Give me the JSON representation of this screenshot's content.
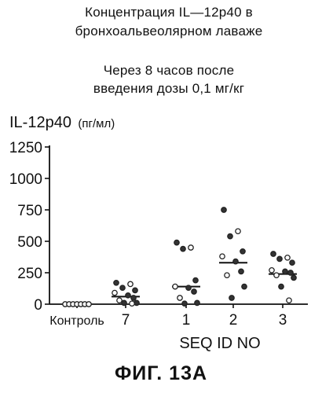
{
  "chart_data": {
    "type": "scatter",
    "title_lines": [
      "Концентрация IL—12p40 в",
      "бронхоальвеолярном лаваже"
    ],
    "subtitle_lines": [
      "Через 8 часов после",
      "введения дозы 0,1 мг/кг"
    ],
    "ylabel": "IL-12p40",
    "ylabel_unit": "(пг/мл)",
    "xlabel": "SEQ ID NO",
    "ylim": [
      0,
      1250
    ],
    "yticks": [
      0,
      250,
      500,
      750,
      1000,
      1250
    ],
    "ytick_labels": [
      "0",
      "250",
      "500",
      "750",
      "1000",
      "1250"
    ],
    "grid": false,
    "categories": [
      "Контроль",
      "7",
      "1",
      "2",
      "3"
    ],
    "groups": [
      {
        "category": "Контроль",
        "median": 0,
        "points": [
          0,
          0,
          0,
          0,
          0,
          0,
          0
        ]
      },
      {
        "category": "7",
        "median": 60,
        "points": [
          170,
          160,
          130,
          110,
          90,
          70,
          50,
          30,
          10,
          10,
          5
        ]
      },
      {
        "category": "1",
        "median": 140,
        "points": [
          490,
          450,
          440,
          190,
          140,
          130,
          100,
          50,
          10,
          5
        ]
      },
      {
        "category": "2",
        "median": 330,
        "points": [
          750,
          580,
          540,
          420,
          380,
          340,
          260,
          230,
          140,
          50
        ]
      },
      {
        "category": "3",
        "median": 240,
        "points": [
          400,
          370,
          360,
          330,
          270,
          260,
          250,
          230,
          210,
          140,
          30
        ]
      }
    ]
  },
  "figure_label": "ФИГ. 13А"
}
